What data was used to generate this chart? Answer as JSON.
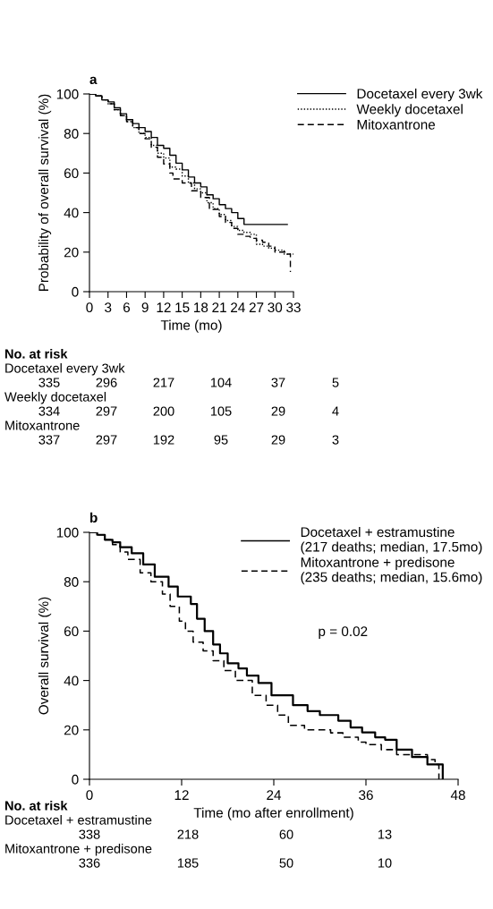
{
  "chart_data": [
    {
      "type": "step",
      "title": "a",
      "xlabel": "Time (mo)",
      "ylabel": "Probability of overall survival (%)",
      "xlim": [
        0,
        33
      ],
      "xticks": [
        0,
        3,
        6,
        9,
        12,
        15,
        18,
        21,
        24,
        27,
        30,
        33
      ],
      "ylim": [
        0,
        100
      ],
      "yticks": [
        0,
        20,
        40,
        60,
        80,
        100
      ],
      "grid": false,
      "legend": "top right",
      "marker": "none",
      "series": [
        {
          "name": "Docetaxel every 3wk",
          "color": "#000000",
          "line_style": "solid",
          "x": [
            0,
            1,
            2,
            3,
            4,
            5,
            6,
            7,
            8,
            9,
            10,
            11,
            12,
            13,
            14,
            15,
            16,
            17,
            18,
            19,
            20,
            21,
            22,
            23,
            24,
            25,
            32
          ],
          "values": [
            100,
            99,
            97,
            96,
            93,
            90,
            87,
            85,
            83,
            81,
            78,
            74,
            72.5,
            69,
            65,
            61.6,
            58,
            55,
            53,
            49,
            47,
            44,
            42,
            40,
            37,
            34,
            34
          ]
        },
        {
          "name": "Weekly docetaxel",
          "color": "#000000",
          "line_style": "dotted",
          "x": [
            0,
            1,
            2,
            3,
            4,
            5,
            6,
            7,
            8,
            9,
            10,
            11,
            12,
            13,
            14,
            15,
            16,
            17,
            18,
            19,
            20,
            21,
            22,
            23,
            24,
            25,
            26,
            27,
            28,
            29,
            30,
            31.5,
            33
          ],
          "values": [
            100,
            99,
            97,
            95,
            92,
            89,
            86,
            83,
            80,
            78,
            74,
            70,
            67.6,
            63,
            62,
            58.5,
            55,
            52,
            50,
            45,
            42,
            39,
            36,
            33,
            31,
            30,
            29,
            24,
            23,
            22,
            21,
            19,
            19
          ]
        },
        {
          "name": "Mitoxantrone",
          "color": "#000000",
          "line_style": "dashed",
          "x": [
            0,
            1,
            2,
            3,
            4,
            5,
            6,
            7,
            8,
            9,
            10,
            11,
            12,
            13,
            13.5,
            15,
            16.5,
            18,
            19.4,
            21,
            22,
            23,
            24,
            25,
            26,
            27,
            28,
            29,
            30,
            31,
            32,
            32.5
          ],
          "values": [
            100,
            99,
            97,
            95,
            92,
            89,
            86,
            83,
            80,
            77.3,
            73,
            68,
            64.6,
            60,
            57,
            55,
            51,
            47.6,
            41.6,
            38,
            35,
            32,
            29,
            28,
            27,
            26,
            25,
            23,
            20,
            20,
            19,
            10
          ]
        }
      ],
      "annotations": [
        "No. at risk",
        "Docetaxel every 3wk",
        "335",
        "296",
        "217",
        "104",
        "37",
        "5",
        "Weekly docetaxel",
        "334",
        "297",
        "200",
        "105",
        "29",
        "4",
        "Mitoxantrone",
        "337",
        "297",
        "192",
        "95",
        "29",
        "3"
      ]
    },
    {
      "type": "step",
      "title": "b",
      "xlabel": "Time (mo after enrollment)",
      "ylabel": "Overall survival (%)",
      "xlim": [
        0,
        48
      ],
      "xticks": [
        0,
        12,
        24,
        36,
        48
      ],
      "ylim": [
        0,
        100
      ],
      "yticks": [
        0,
        20,
        40,
        60,
        80,
        100
      ],
      "grid": false,
      "legend": "top right",
      "marker": "none",
      "series": [
        {
          "name": "Docetaxel + estramustine\n(217 deaths; median, 17.5mo)",
          "color": "#000000",
          "line_style": "solid",
          "x": [
            0,
            1,
            2,
            3,
            4,
            5.5,
            7,
            8.5,
            10.3,
            11.5,
            13.2,
            14,
            15,
            16.1,
            17,
            18,
            19.4,
            20.5,
            22,
            23.7,
            25.5,
            26.5,
            28.4,
            30,
            32.4,
            34,
            35.5,
            37.2,
            38.5,
            40,
            42,
            44,
            45,
            46
          ],
          "values": [
            100,
            99,
            97,
            96,
            94,
            91.5,
            87,
            82,
            78,
            74,
            71,
            65,
            60,
            54.6,
            51,
            47,
            44.9,
            42,
            39,
            34,
            34,
            30,
            27.6,
            26,
            23.7,
            21,
            19,
            17,
            16,
            12,
            9,
            6,
            6,
            0
          ]
        },
        {
          "name": "Mitoxantrone + predisone\n(235 deaths; median, 15.6mo)",
          "color": "#000000",
          "line_style": "dashed",
          "x": [
            0,
            1,
            2,
            3,
            4,
            5,
            6.6,
            8,
            9.5,
            10.5,
            11.7,
            12.5,
            13.5,
            14.8,
            16.1,
            17.5,
            19,
            21.2,
            23,
            24.5,
            25.9,
            28,
            31.4,
            33,
            35,
            36,
            38,
            40,
            42,
            44,
            45,
            45.5
          ],
          "values": [
            100,
            99,
            97,
            95,
            92,
            89,
            83.6,
            80,
            75,
            70,
            64,
            60,
            55.5,
            52,
            48,
            44,
            40,
            34,
            30,
            26,
            21.8,
            20,
            18.8,
            17,
            15,
            14,
            12,
            10,
            10,
            8,
            6,
            0
          ]
        }
      ],
      "annotations": [
        "p = 0.02",
        "No. at risk",
        "Docetaxel + estramustine",
        "338",
        "218",
        "60",
        "13",
        "Mitoxantrone + predisone",
        "336",
        "185",
        "50",
        "10"
      ]
    }
  ]
}
